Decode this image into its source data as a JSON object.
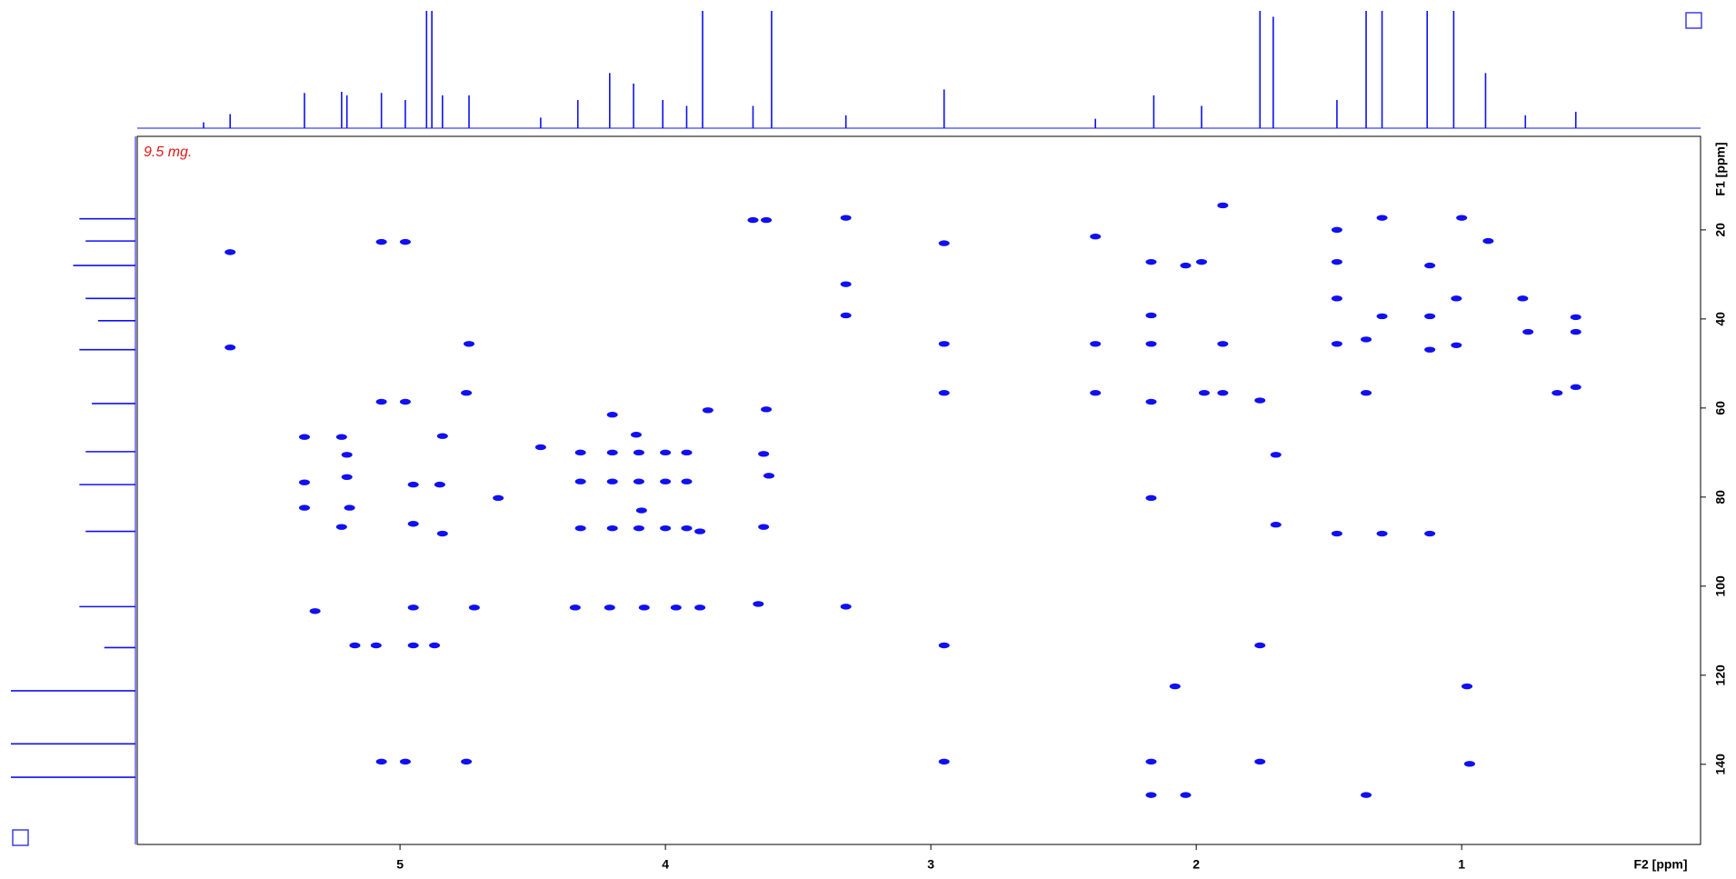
{
  "chart_data": {
    "type": "scatter",
    "note": "9.5 mg.",
    "x_label": "F2 [ppm]",
    "y_label": "F1 [ppm]",
    "xlim": [
      5.99,
      0.1
    ],
    "xticks": [
      5,
      4,
      3,
      2,
      1
    ],
    "ylim": [
      -1,
      158
    ],
    "yticks": [
      20,
      40,
      60,
      80,
      100,
      120,
      140
    ],
    "color": "#1010f0",
    "series": [
      {
        "x": [
          5.64,
          5.64,
          5.07,
          4.98,
          5.07,
          4.98,
          4.74,
          4.75,
          5.36,
          5.36,
          5.36,
          5.22,
          5.2,
          5.2,
          5.19,
          5.22,
          4.95,
          4.95,
          4.84,
          4.84,
          4.85,
          5.17,
          5.09,
          4.95,
          4.87,
          4.95,
          4.72,
          5.32,
          5.07,
          4.98,
          4.75,
          4.63,
          4.47,
          4.34,
          4.21,
          4.08,
          3.96,
          3.87,
          4.32,
          4.2,
          4.1,
          4.0,
          3.92,
          4.32,
          4.2,
          4.1,
          4.0,
          3.92,
          4.32,
          4.2,
          4.1,
          4.0,
          3.92,
          4.11,
          4.09,
          4.2,
          3.87,
          3.84,
          3.67,
          3.62,
          3.62,
          3.63,
          3.61,
          3.63,
          3.65,
          3.32,
          3.32,
          3.32,
          3.32,
          2.95,
          2.95,
          2.95,
          2.95,
          2.95,
          2.38,
          2.38,
          2.38,
          2.17,
          2.17,
          2.17,
          2.17,
          2.17,
          2.17,
          2.17,
          2.04,
          2.08,
          2.04,
          1.98,
          1.97,
          1.9,
          1.9,
          1.9,
          1.76,
          1.76,
          1.76,
          1.7,
          1.7,
          1.47,
          1.47,
          1.47,
          1.47,
          1.47,
          1.36,
          1.36,
          1.36,
          1.3,
          1.3,
          1.3,
          1.12,
          1.12,
          1.12,
          1.12,
          1.02,
          1.02,
          1.0,
          0.98,
          0.97,
          0.9,
          0.77,
          0.75,
          0.64,
          0.57,
          0.57,
          0.57
        ],
        "values": [
          25,
          46.4,
          22.7,
          22.7,
          58.6,
          58.6,
          45.6,
          56.6,
          66.5,
          76.7,
          82.4,
          66.5,
          70.5,
          75.5,
          82.4,
          86.7,
          86,
          77.2,
          66.3,
          88.2,
          77.2,
          113.3,
          113.3,
          113.3,
          113.3,
          104.8,
          104.8,
          105.6,
          139.4,
          139.4,
          139.4,
          80.2,
          68.8,
          104.8,
          104.8,
          104.8,
          104.8,
          104.8,
          70,
          70,
          70,
          70,
          70,
          76.5,
          76.5,
          76.5,
          76.5,
          76.5,
          87,
          87,
          87,
          87,
          87,
          66,
          83,
          61.5,
          87.7,
          60.5,
          17.8,
          17.8,
          60.3,
          70.3,
          75.2,
          86.7,
          104,
          17.3,
          32.2,
          39.2,
          104.6,
          23,
          45.6,
          56.6,
          113.3,
          139.4,
          21.5,
          45.6,
          56.6,
          27.2,
          39.2,
          45.6,
          58.6,
          80.2,
          139.4,
          146.9,
          146.9,
          122.5,
          28,
          27.2,
          56.6,
          56.6,
          14.5,
          45.6,
          58.3,
          113.3,
          139.4,
          70.5,
          86.2,
          45.6,
          88.2,
          20,
          27.2,
          35.4,
          44.6,
          56.6,
          146.9,
          17.3,
          39.4,
          88.2,
          28,
          39.4,
          46.9,
          88.2,
          35.4,
          45.9,
          17.3,
          122.5,
          139.9,
          22.5,
          35.4,
          42.9,
          56.6,
          55.3,
          39.6,
          42.9
        ]
      }
    ],
    "f2_projection": {
      "x": [
        5.74,
        5.64,
        5.36,
        5.22,
        5.2,
        5.07,
        4.98,
        4.9,
        4.88,
        4.84,
        4.74,
        4.47,
        4.33,
        4.21,
        4.12,
        4.01,
        3.92,
        3.86,
        3.67,
        3.6,
        3.32,
        2.95,
        2.38,
        2.16,
        1.98,
        1.76,
        1.71,
        1.47,
        1.36,
        1.3,
        1.13,
        1.03,
        0.91,
        0.76,
        0.57
      ],
      "values": [
        5,
        12,
        30,
        31,
        28,
        30,
        24,
        100,
        100,
        28,
        28,
        9,
        24,
        47,
        38,
        24,
        19,
        100,
        19,
        100,
        11,
        33,
        8,
        28,
        19,
        100,
        95,
        24,
        100,
        100,
        100,
        100,
        47,
        11,
        14
      ]
    },
    "f1_projection": {
      "y": [
        17.5,
        22.5,
        28,
        35.4,
        40.4,
        46.9,
        59,
        69.8,
        77.2,
        87.7,
        104.6,
        113.8,
        123.5,
        135.4,
        142.9
      ],
      "values": [
        45,
        40,
        50,
        40,
        30,
        45,
        35,
        40,
        45,
        40,
        45,
        25,
        100,
        100,
        100
      ]
    }
  }
}
